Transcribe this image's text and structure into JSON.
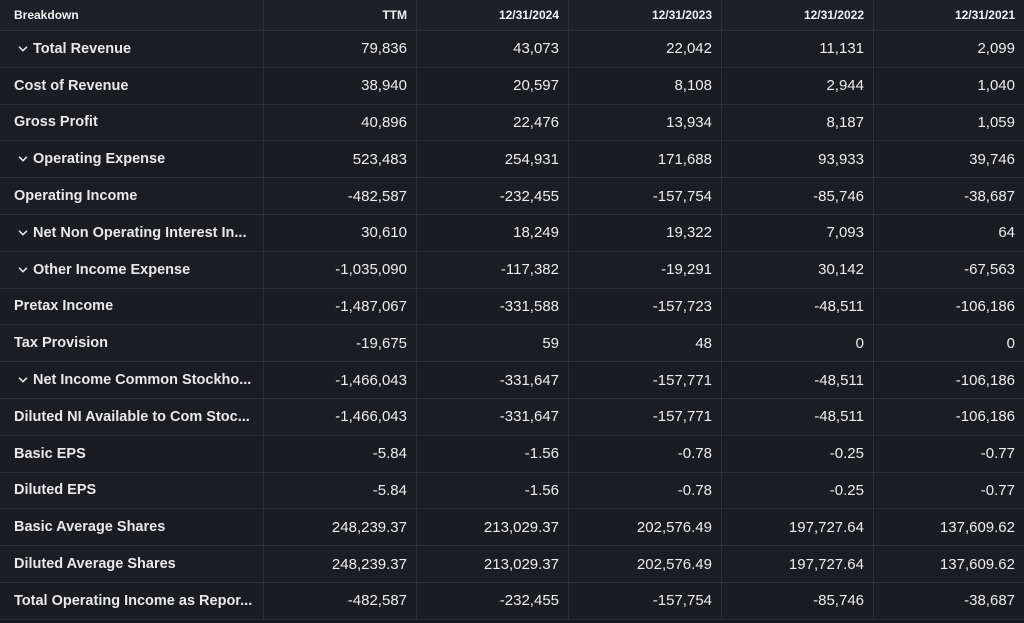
{
  "header": {
    "label": "Breakdown",
    "columns": [
      "TTM",
      "12/31/2024",
      "12/31/2023",
      "12/31/2022",
      "12/31/2021"
    ]
  },
  "rows": [
    {
      "label": "Total Revenue",
      "expandable": true,
      "values": [
        "79,836",
        "43,073",
        "22,042",
        "11,131",
        "2,099"
      ]
    },
    {
      "label": "Cost of Revenue",
      "expandable": false,
      "values": [
        "38,940",
        "20,597",
        "8,108",
        "2,944",
        "1,040"
      ]
    },
    {
      "label": "Gross Profit",
      "expandable": false,
      "values": [
        "40,896",
        "22,476",
        "13,934",
        "8,187",
        "1,059"
      ]
    },
    {
      "label": "Operating Expense",
      "expandable": true,
      "values": [
        "523,483",
        "254,931",
        "171,688",
        "93,933",
        "39,746"
      ]
    },
    {
      "label": "Operating Income",
      "expandable": false,
      "values": [
        "-482,587",
        "-232,455",
        "-157,754",
        "-85,746",
        "-38,687"
      ]
    },
    {
      "label": "Net Non Operating Interest In...",
      "expandable": true,
      "values": [
        "30,610",
        "18,249",
        "19,322",
        "7,093",
        "64"
      ]
    },
    {
      "label": "Other Income Expense",
      "expandable": true,
      "values": [
        "-1,035,090",
        "-117,382",
        "-19,291",
        "30,142",
        "-67,563"
      ]
    },
    {
      "label": "Pretax Income",
      "expandable": false,
      "values": [
        "-1,487,067",
        "-331,588",
        "-157,723",
        "-48,511",
        "-106,186"
      ]
    },
    {
      "label": "Tax Provision",
      "expandable": false,
      "values": [
        "-19,675",
        "59",
        "48",
        "0",
        "0"
      ]
    },
    {
      "label": "Net Income Common Stockho...",
      "expandable": true,
      "values": [
        "-1,466,043",
        "-331,647",
        "-157,771",
        "-48,511",
        "-106,186"
      ]
    },
    {
      "label": "Diluted NI Available to Com Stoc...",
      "expandable": false,
      "values": [
        "-1,466,043",
        "-331,647",
        "-157,771",
        "-48,511",
        "-106,186"
      ]
    },
    {
      "label": "Basic EPS",
      "expandable": false,
      "values": [
        "-5.84",
        "-1.56",
        "-0.78",
        "-0.25",
        "-0.77"
      ]
    },
    {
      "label": "Diluted EPS",
      "expandable": false,
      "values": [
        "-5.84",
        "-1.56",
        "-0.78",
        "-0.25",
        "-0.77"
      ]
    },
    {
      "label": "Basic Average Shares",
      "expandable": false,
      "values": [
        "248,239.37",
        "213,029.37",
        "202,576.49",
        "197,727.64",
        "137,609.62"
      ]
    },
    {
      "label": "Diluted Average Shares",
      "expandable": false,
      "values": [
        "248,239.37",
        "213,029.37",
        "202,576.49",
        "197,727.64",
        "137,609.62"
      ]
    },
    {
      "label": "Total Operating Income as Repor...",
      "expandable": false,
      "values": [
        "-482,587",
        "-232,455",
        "-157,754",
        "-85,746",
        "-38,687"
      ]
    }
  ],
  "icons": {
    "expand": "chevron-down-icon"
  },
  "colors": {
    "background": "#16181d",
    "header_background": "#1d2027",
    "grid_line": "#2b2f38",
    "text": "#ededed"
  }
}
